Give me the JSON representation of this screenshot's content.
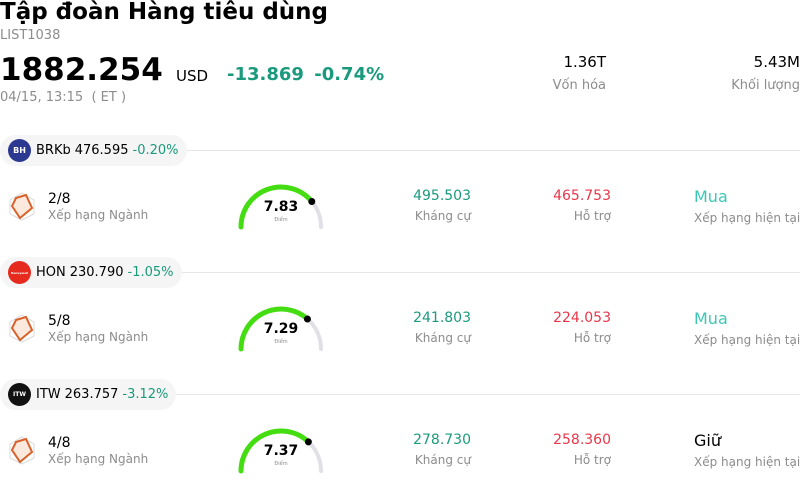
{
  "header": {
    "title": "Tập đoàn Hàng tiêu dùng",
    "code": "LIST1038",
    "price": "1882.254",
    "currency": "USD",
    "change": "-13.869",
    "change_pct": "-0.74%",
    "timestamp": "04/15, 13:15  ( ET )",
    "market_cap_value": "1.36T",
    "market_cap_label": "Vốn hóa",
    "volume_value": "5.43M",
    "volume_label": "Khối lượng"
  },
  "colors": {
    "positive": "#1a9a7c",
    "negative": "#e8374a",
    "buy": "#3cc7b4",
    "gauge_fill": "#44dd11",
    "gauge_track": "#e0e0e6"
  },
  "stocks": [
    {
      "ticker": "BRKb",
      "price": "476.595",
      "change_pct": "-0.20%",
      "logo_text": "BH",
      "logo_icon": "berkshire-logo-icon",
      "rank": "2/8",
      "rank_label": "Xếp hạng Ngành",
      "score": "7.83",
      "score_label": "Điểm",
      "score_fraction": 0.78,
      "resistance": "495.503",
      "resistance_label": "Kháng cự",
      "support": "465.753",
      "support_label": "Hỗ trợ",
      "rating": "Mua",
      "rating_label": "Xếp hạng hiện tại"
    },
    {
      "ticker": "HON",
      "price": "230.790",
      "change_pct": "-1.05%",
      "logo_text": "Honeywell",
      "logo_icon": "honeywell-logo-icon",
      "rank": "5/8",
      "rank_label": "Xếp hạng Ngành",
      "score": "7.29",
      "score_label": "Điểm",
      "score_fraction": 0.73,
      "resistance": "241.803",
      "resistance_label": "Kháng cự",
      "support": "224.053",
      "support_label": "Hỗ trợ",
      "rating": "Mua",
      "rating_label": "Xếp hạng hiện tại"
    },
    {
      "ticker": "ITW",
      "price": "263.757",
      "change_pct": "-3.12%",
      "logo_text": "ITW",
      "logo_icon": "itw-logo-icon",
      "rank": "4/8",
      "rank_label": "Xếp hạng Ngành",
      "score": "7.37",
      "score_label": "Điểm",
      "score_fraction": 0.74,
      "resistance": "278.730",
      "resistance_label": "Kháng cự",
      "support": "258.360",
      "support_label": "Hỗ trợ",
      "rating": "Giữ",
      "rating_label": "Xếp hạng hiện tại"
    }
  ]
}
